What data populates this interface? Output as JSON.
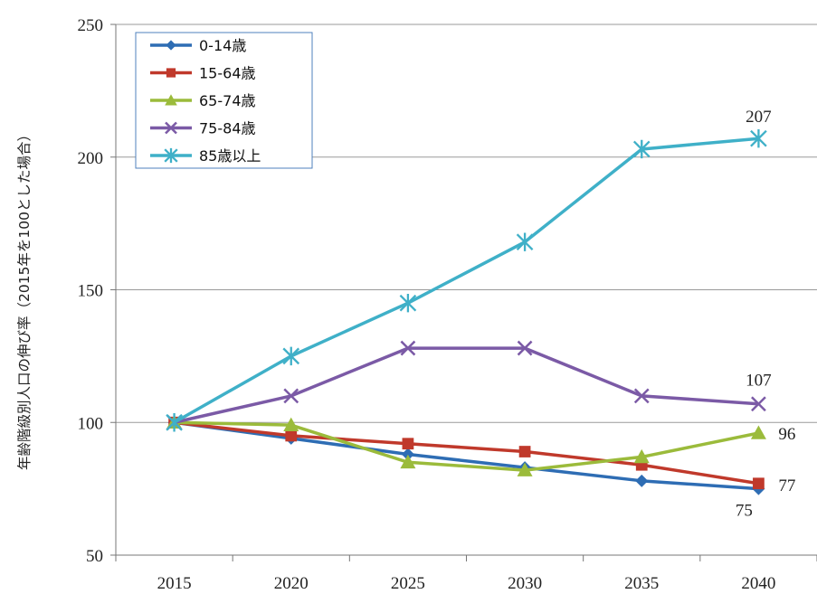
{
  "chart_data": {
    "type": "line",
    "ylabel": "年齢階級別人口の伸び率（2015年を100とした場合）",
    "xlabel": "",
    "categories": [
      "2015",
      "2020",
      "2025",
      "2030",
      "2035",
      "2040"
    ],
    "ylim": [
      50,
      250
    ],
    "yticks": [
      50,
      100,
      150,
      200,
      250
    ],
    "grid": true,
    "legend_position": "top-left",
    "series": [
      {
        "name": "0-14歳",
        "color": "#2e6db4",
        "marker": "diamond",
        "values": [
          100,
          94,
          88,
          83,
          78,
          75
        ]
      },
      {
        "name": "15-64歳",
        "color": "#c0392b",
        "marker": "square",
        "values": [
          100,
          95,
          92,
          89,
          84,
          77
        ]
      },
      {
        "name": "65-74歳",
        "color": "#9bbb3b",
        "marker": "triangle",
        "values": [
          100,
          99,
          85,
          82,
          87,
          96
        ]
      },
      {
        "name": "75-84歳",
        "color": "#7b5aa6",
        "marker": "x",
        "values": [
          100,
          110,
          128,
          128,
          110,
          107
        ]
      },
      {
        "name": "85歳以上",
        "color": "#3fb0c8",
        "marker": "asterisk",
        "values": [
          100,
          125,
          145,
          168,
          203,
          207
        ]
      }
    ],
    "data_labels": [
      {
        "series": 4,
        "index": 5,
        "text": "207"
      },
      {
        "series": 3,
        "index": 5,
        "text": "107"
      },
      {
        "series": 2,
        "index": 5,
        "text": "96"
      },
      {
        "series": 1,
        "index": 5,
        "text": "77"
      },
      {
        "series": 0,
        "index": 5,
        "text": "75"
      }
    ]
  }
}
